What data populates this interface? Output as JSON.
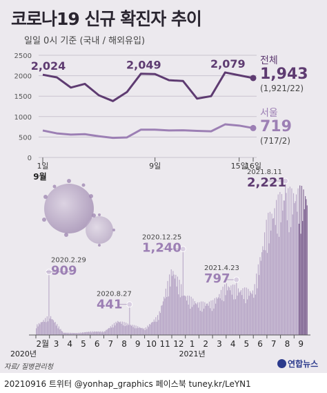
{
  "title": "코로나19 신규 확진자 추이",
  "subtitle": "일일 0시 기준 (국내 / 해외유입)",
  "footer": "20210916 트위터 @yonhap_graphics  페이스북 tuney.kr/LeYN1",
  "source": "자료/ 질병관리청",
  "logo": "연합뉴스",
  "colors": {
    "total": "#5e3b71",
    "seoul": "#9c7fb4",
    "bars": "#b8a7c7",
    "bars_dark": "#7e6291",
    "bg": "#ece9ee"
  },
  "chart_data": [
    {
      "type": "line",
      "x": [
        "1",
        "2",
        "3",
        "4",
        "5",
        "6",
        "7",
        "8",
        "9",
        "10",
        "11",
        "12",
        "13",
        "14",
        "15",
        "16"
      ],
      "x_tick_labels": [
        "1일",
        "9일",
        "15일",
        "16일"
      ],
      "x_month_label": "9월",
      "ylim": [
        0,
        2500
      ],
      "y_ticks": [
        0,
        500,
        1000,
        1500,
        2000,
        2500
      ],
      "series": [
        {
          "name": "전체",
          "values": [
            2024,
            1960,
            1710,
            1800,
            1520,
            1380,
            1600,
            2049,
            2040,
            1890,
            1870,
            1440,
            1500,
            2079,
            2010,
            1943
          ]
        },
        {
          "name": "서울",
          "values": [
            660,
            590,
            560,
            570,
            520,
            480,
            490,
            680,
            680,
            660,
            665,
            650,
            640,
            810,
            780,
            719
          ]
        }
      ],
      "annotations": [
        {
          "text": "2,024",
          "x": "1"
        },
        {
          "text": "2,049",
          "x": "8"
        },
        {
          "text": "2,079",
          "x": "14"
        }
      ],
      "end_labels": [
        {
          "name": "전체",
          "value": "1,943",
          "detail": "(1,921/22)"
        },
        {
          "name": "서울",
          "value": "719",
          "detail": "(717/2)"
        }
      ]
    },
    {
      "type": "bar",
      "x_tick_labels": [
        "2월",
        "3",
        "4",
        "5",
        "6",
        "7",
        "8",
        "9",
        "10",
        "11",
        "12",
        "1",
        "2",
        "3",
        "4",
        "5",
        "6",
        "7",
        "8",
        "9"
      ],
      "year_labels": [
        "2020년",
        "2021년"
      ],
      "peaks": [
        {
          "date": "2020.2.29",
          "value": 909
        },
        {
          "date": "2020.8.27",
          "value": 441
        },
        {
          "date": "2020.12.25",
          "value": 1240
        },
        {
          "date": "2021.4.23",
          "value": 797
        },
        {
          "date": "2021.8.11",
          "value": 2221
        }
      ],
      "peak_labels": [
        "909",
        "441",
        "1,240",
        "797",
        "2,221"
      ],
      "monthly_levels": [
        {
          "month": "2020-02",
          "value": 120
        },
        {
          "month": "2020-03",
          "value": 250
        },
        {
          "month": "2020-04",
          "value": 30
        },
        {
          "month": "2020-05",
          "value": 25
        },
        {
          "month": "2020-06",
          "value": 45
        },
        {
          "month": "2020-07",
          "value": 45
        },
        {
          "month": "2020-08",
          "value": 180
        },
        {
          "month": "2020-09",
          "value": 130
        },
        {
          "month": "2020-10",
          "value": 80
        },
        {
          "month": "2020-11",
          "value": 250
        },
        {
          "month": "2020-12",
          "value": 850
        },
        {
          "month": "2021-01",
          "value": 500
        },
        {
          "month": "2021-02",
          "value": 400
        },
        {
          "month": "2021-03",
          "value": 420
        },
        {
          "month": "2021-04",
          "value": 640
        },
        {
          "month": "2021-05",
          "value": 580
        },
        {
          "month": "2021-06",
          "value": 560
        },
        {
          "month": "2021-07",
          "value": 1450
        },
        {
          "month": "2021-08",
          "value": 1750
        },
        {
          "month": "2021-09",
          "value": 1800
        }
      ]
    }
  ]
}
